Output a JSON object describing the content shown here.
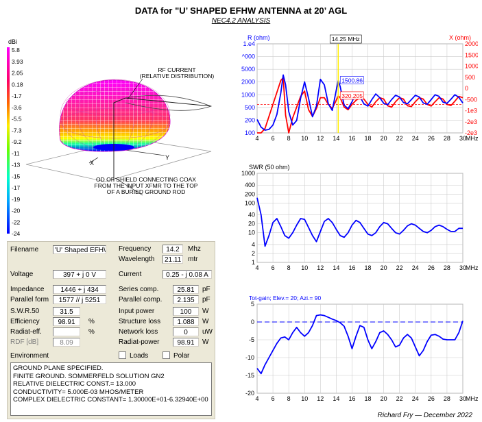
{
  "title": "DATA for \"U’ SHAPED EFHW ANTENNA at 20’ AGL",
  "subtitle": "NEC4.2 ANALYSIS",
  "credit": "Richard Fry — December 2022",
  "pattern": {
    "unit": "dBi",
    "scale": [
      "5.8",
      "3.93",
      "2.05",
      "0.18",
      "-1.7",
      "-3.6",
      "-5.5",
      "-7.3",
      "-9.2",
      "-11",
      "-13",
      "-15",
      "-17",
      "-19",
      "-20",
      "-22",
      "-24"
    ],
    "annotation_rf": "RF CURRENT\n(RELATIVE DISTRIBUTION)",
    "annotation_coax": "OD OF SHIELD CONNECTING COAX\nFROM THE INPUT XFMR TO THE TOP\nOF A BURIED GROUND ROD",
    "axis_x": "X",
    "axis_y": "Y"
  },
  "nec_panel": {
    "filename_label": "Filename",
    "filename_value": "'U' Shaped EFH\\",
    "frequency_label": "Frequency",
    "frequency_value": "14.2",
    "frequency_unit": "Mhz",
    "wavelength_label": "Wavelength",
    "wavelength_value": "21.11",
    "wavelength_unit": "mtr",
    "voltage_label": "Voltage",
    "voltage_value": "397 + j 0 V",
    "current_label": "Current",
    "current_value": "0.25 - j 0.08 A",
    "impedance_label": "Impedance",
    "impedance_value": "1446 + j 434",
    "series_label": "Series comp.",
    "series_value": "25.81",
    "series_unit": "pF",
    "parallel_form_label": "Parallel form",
    "parallel_form_value": "1577 // j 5251",
    "parallel_comp_label": "Parallel comp.",
    "parallel_comp_value": "2.135",
    "parallel_comp_unit": "pF",
    "swr_label": "S.W.R.50",
    "swr_value": "31.5",
    "input_power_label": "Input power",
    "input_power_value": "100",
    "input_power_unit": "W",
    "efficiency_label": "Efficiency",
    "efficiency_value": "98.91",
    "efficiency_unit": "%",
    "structure_loss_label": "Structure loss",
    "structure_loss_value": "1.088",
    "structure_loss_unit": "W",
    "radiat_eff_label": "Radiat-eff.",
    "radiat_eff_value": "",
    "radiat_eff_unit": "%",
    "network_loss_label": "Network loss",
    "network_loss_value": "0",
    "network_loss_unit": "uW",
    "rdf_label": "RDF [dB]",
    "rdf_value": "8.09",
    "radiat_power_label": "Radiat-power",
    "radiat_power_value": "98.91",
    "radiat_power_unit": "W",
    "environment_label": "Environment",
    "loads_label": "Loads",
    "polar_label": "Polar",
    "environment_lines": [
      "GROUND PLANE SPECIFIED.",
      "FINITE GROUND.  SOMMERFELD SOLUTION GN2",
      "RELATIVE DIELECTRIC CONST.= 13.000",
      "CONDUCTIVITY= 5.000E-03 MHOS/METER",
      "COMPLEX DIELECTRIC CONSTANT= 1.30000E+01-6.32940E+00"
    ]
  },
  "chart_data": [
    {
      "type": "line",
      "title": "",
      "ylabel_left": "R (ohm)",
      "ylabel_right": "X (ohm)",
      "xunit": "MHz",
      "xlim": [
        4,
        30
      ],
      "xticks": [
        4,
        6,
        8,
        10,
        12,
        14,
        16,
        18,
        20,
        22,
        24,
        26,
        28,
        30
      ],
      "y_left_scale": "log",
      "y_left_ticks": [
        "1.e4",
        "^000",
        "5000",
        "2000",
        "1000",
        "500",
        "200",
        "100"
      ],
      "y_right_ticks": [
        "2000",
        "1500",
        "1000",
        "500",
        "0",
        "-500",
        "-1e3",
        "-2e3",
        "-2e3"
      ],
      "cursor_label": "14.25 MHz",
      "cursor_x": 14.25,
      "cursor_r_value": "1500.86",
      "cursor_x_value": "320.205",
      "series": [
        {
          "axis": "left",
          "color": "#0000ff",
          "x": [
            4,
            4.5,
            5,
            5.5,
            6,
            6.5,
            7,
            7.3,
            7.6,
            8,
            8.5,
            9,
            9.5,
            10,
            10.5,
            11,
            11.5,
            12,
            12.5,
            13,
            13.5,
            14,
            14.25,
            14.5,
            15,
            15.5,
            16,
            16.5,
            17,
            17.5,
            18,
            18.5,
            19,
            19.5,
            20,
            20.5,
            21,
            21.5,
            22,
            22.5,
            23,
            23.5,
            24,
            24.5,
            25,
            25.5,
            26,
            26.5,
            27,
            27.5,
            28,
            28.5,
            29,
            29.5,
            30
          ],
          "y": [
            200,
            135,
            115,
            120,
            150,
            260,
            800,
            2000,
            1200,
            300,
            150,
            190,
            600,
            1400,
            600,
            230,
            400,
            1600,
            1200,
            450,
            320,
            900,
            1500,
            1100,
            420,
            350,
            500,
            800,
            650,
            450,
            400,
            560,
            750,
            620,
            460,
            430,
            560,
            700,
            640,
            480,
            450,
            560,
            700,
            640,
            470,
            440,
            560,
            720,
            660,
            490,
            460,
            570,
            720,
            630,
            470
          ]
        },
        {
          "axis": "right",
          "color": "#ff0000",
          "x": [
            4,
            4.5,
            5,
            5.5,
            6,
            6.5,
            7,
            7.3,
            7.6,
            8,
            8.5,
            9,
            9.5,
            10,
            10.5,
            11,
            11.5,
            12,
            12.5,
            13,
            13.5,
            14,
            14.25,
            14.5,
            15,
            15.5,
            16,
            16.5,
            17,
            17.5,
            18,
            18.5,
            19,
            19.5,
            20,
            20.5,
            21,
            21.5,
            22,
            22.5,
            23,
            23.5,
            24,
            24.5,
            25,
            25.5,
            26,
            26.5,
            27,
            27.5,
            28,
            28.5,
            29,
            29.5,
            30
          ],
          "y": [
            -1800,
            -1300,
            -900,
            -450,
            0,
            450,
            900,
            1000,
            -400,
            -1200,
            -500,
            -100,
            300,
            500,
            -200,
            -450,
            -150,
            250,
            250,
            0,
            -150,
            150,
            320,
            250,
            -100,
            -200,
            0,
            150,
            250,
            200,
            0,
            -100,
            100,
            250,
            200,
            -50,
            -100,
            100,
            250,
            200,
            -50,
            -80,
            100,
            250,
            200,
            0,
            -60,
            100,
            250,
            200,
            0,
            -40,
            120,
            300,
            250
          ]
        }
      ]
    },
    {
      "type": "line",
      "title": "",
      "ylabel": "SWR (50 ohm)",
      "xunit": "MHz",
      "xlim": [
        4,
        30
      ],
      "xticks": [
        4,
        6,
        8,
        10,
        12,
        14,
        16,
        18,
        20,
        22,
        24,
        26,
        28,
        30
      ],
      "y_scale": "log",
      "y_ticks": [
        1000,
        400,
        200,
        100,
        40,
        20,
        10,
        4,
        2,
        1
      ],
      "series": [
        {
          "color": "#0000ff",
          "x": [
            4,
            4.5,
            5,
            5.5,
            6,
            6.5,
            7,
            7.5,
            8,
            8.5,
            9,
            9.5,
            10,
            10.5,
            11,
            11.5,
            12,
            12.5,
            13,
            13.5,
            14,
            14.5,
            15,
            15.5,
            16,
            16.5,
            17,
            17.5,
            18,
            18.5,
            19,
            19.5,
            20,
            20.5,
            21,
            21.5,
            22,
            22.5,
            23,
            23.5,
            24,
            24.5,
            25,
            25.5,
            26,
            26.5,
            27,
            27.5,
            28,
            28.5,
            29,
            29.5,
            30
          ],
          "y": [
            150,
            40,
            3.5,
            8,
            22,
            30,
            16,
            8,
            6.5,
            10,
            18,
            30,
            28,
            15,
            8,
            5,
            11,
            24,
            30,
            22,
            13,
            8,
            7,
            10,
            18,
            26,
            22,
            14,
            9,
            8,
            10,
            16,
            22,
            20,
            14,
            10,
            9,
            12,
            17,
            20,
            18,
            14,
            11,
            10,
            12,
            16,
            18,
            16,
            13,
            11,
            11,
            14,
            14
          ]
        }
      ]
    },
    {
      "type": "line",
      "title": "Tot-gain; Elev.= 20; Azi.= 90",
      "xunit": "MHz",
      "xlim": [
        4,
        30
      ],
      "ylim": [
        -20,
        5
      ],
      "xticks": [
        4,
        6,
        8,
        10,
        12,
        14,
        16,
        18,
        20,
        22,
        24,
        26,
        28,
        30
      ],
      "yticks": [
        5,
        0,
        -5,
        -10,
        -15,
        -20
      ],
      "reference_line": 0,
      "series": [
        {
          "color": "#0000ff",
          "x": [
            4,
            4.5,
            5,
            5.5,
            6,
            6.5,
            7,
            7.5,
            8,
            8.5,
            9,
            9.5,
            10,
            10.5,
            11,
            11.5,
            12,
            12.5,
            13,
            13.5,
            14,
            14.5,
            15,
            15.5,
            16,
            16.5,
            17,
            17.5,
            18,
            18.5,
            19,
            19.5,
            20,
            20.5,
            21,
            21.5,
            22,
            22.5,
            23,
            23.5,
            24,
            24.5,
            25,
            25.5,
            26,
            26.5,
            27,
            27.5,
            28,
            28.5,
            29,
            29.5,
            30
          ],
          "y": [
            -13,
            -14.5,
            -12,
            -10,
            -8,
            -6,
            -4.5,
            -4.2,
            -5,
            -3,
            -1.5,
            -3,
            -4,
            -3,
            -1,
            1.8,
            2,
            1.8,
            1.3,
            0.8,
            0.4,
            -0.2,
            -1.2,
            -4,
            -7.5,
            -4,
            -1,
            -1.5,
            -5,
            -7.5,
            -5.5,
            -3,
            -2.5,
            -3.5,
            -5,
            -7,
            -6.5,
            -4.5,
            -3.5,
            -4.5,
            -7,
            -9.5,
            -8,
            -5.5,
            -3.7,
            -3.5,
            -4,
            -4.8,
            -5,
            -5,
            -5,
            -3,
            0.3
          ]
        }
      ]
    }
  ]
}
